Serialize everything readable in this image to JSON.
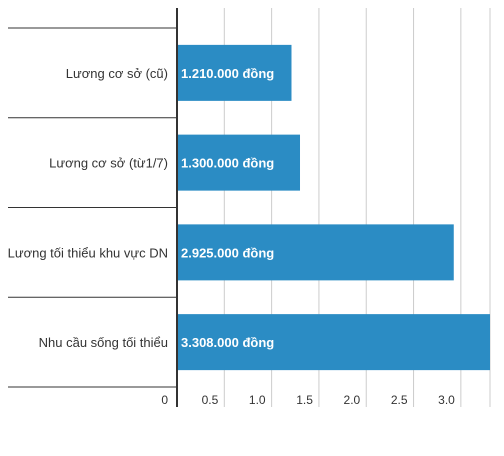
{
  "chart_data": {
    "type": "bar",
    "orientation": "horizontal",
    "categories": [
      "Lương cơ sở (cũ)",
      "Lương cơ sở (từ1/7)",
      "Lương tối thiểu khu vực DN",
      "Nhu cầu sống tối thiểu"
    ],
    "values": [
      1.21,
      1.3,
      2.925,
      3.308
    ],
    "data_labels": [
      "1.210.000 đồng",
      "1.300.000 đồng",
      "2.925.000 đồng",
      "3.308.000 đồng"
    ],
    "x_ticks": [
      "0",
      "0.5",
      "1.0",
      "1.5",
      "2.0",
      "2.5",
      "3.0"
    ],
    "x_tick_values": [
      0,
      0.5,
      1.0,
      1.5,
      2.0,
      2.5,
      3.0
    ],
    "xlim": [
      0,
      3.308
    ],
    "title": "",
    "xlabel": "",
    "ylabel": "",
    "grid": true,
    "legend": "none",
    "bar_color": "#2b8cc4",
    "grid_color": "#cccccc",
    "axis_color": "#333333"
  }
}
